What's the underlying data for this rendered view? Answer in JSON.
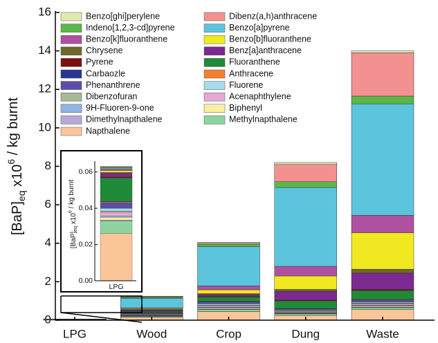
{
  "chart_data": [
    {
      "type": "stacked_bar",
      "ylabel": {
        "main": "[BaP]",
        "sub": "eq",
        "mid": " x10",
        "sup": "6",
        "end": " / kg burnt"
      },
      "categories": [
        "LPG",
        "Wood",
        "Crop",
        "Dung",
        "Waste"
      ],
      "ylim": [
        0,
        16
      ],
      "yticks": [
        0,
        2,
        4,
        6,
        8,
        10,
        12,
        14,
        16
      ],
      "series": [
        {
          "name": "Napthalene",
          "color": "#fbc59a",
          "values": [
            0.026,
            0.15,
            0.45,
            0.25,
            0.55
          ]
        },
        {
          "name": "Methylnapthalene",
          "color": "#8fd4a0",
          "values": [
            0.007,
            0.05,
            0.1,
            0.08,
            0.1
          ]
        },
        {
          "name": "Dimethylnapthalene",
          "color": "#b9a9d4",
          "values": [
            0.0005,
            0.01,
            0.02,
            0.02,
            0.03
          ]
        },
        {
          "name": "Biphenyl",
          "color": "#f8f0a0",
          "values": [
            0.0015,
            0.02,
            0.05,
            0.03,
            0.05
          ]
        },
        {
          "name": "9H-Fluoren-9-one",
          "color": "#8fb4e0",
          "values": [
            0.0008,
            0.02,
            0.05,
            0.03,
            0.04
          ]
        },
        {
          "name": "Acenaphthylene",
          "color": "#e6a8d4",
          "values": [
            0.002,
            0.03,
            0.08,
            0.06,
            0.08
          ]
        },
        {
          "name": "Dibenzofuran",
          "color": "#a8b898",
          "values": [
            0.0007,
            0.02,
            0.03,
            0.02,
            0.03
          ]
        },
        {
          "name": "Fluorene",
          "color": "#a8dcec",
          "values": [
            0.0015,
            0.03,
            0.07,
            0.05,
            0.06
          ]
        },
        {
          "name": "Phenanthrene",
          "color": "#5a4ea8",
          "values": [
            0.003,
            0.05,
            0.1,
            0.04,
            0.1
          ]
        },
        {
          "name": "Anthracene",
          "color": "#f08030",
          "values": [
            0.0005,
            0.01,
            0.02,
            0.01,
            0.03
          ]
        },
        {
          "name": "Carbaozle",
          "color": "#283890",
          "values": [
            0.0003,
            0.01,
            0.01,
            0.01,
            0.02
          ]
        },
        {
          "name": "Fluoranthene",
          "color": "#1f8a3a",
          "values": [
            0.013,
            0.06,
            0.22,
            0.4,
            0.45
          ]
        },
        {
          "name": "Pyrene",
          "color": "#7a1010",
          "values": [
            0.0005,
            0.02,
            0.03,
            0.05,
            0.06
          ]
        },
        {
          "name": "Benz[a]anthracene",
          "color": "#7a2a90",
          "values": [
            0.002,
            0.05,
            0.1,
            0.45,
            0.85
          ]
        },
        {
          "name": "Chrysene",
          "color": "#6e6a2a",
          "values": [
            0.0005,
            0.03,
            0.05,
            0.1,
            0.2
          ]
        },
        {
          "name": "Benzo[b]fluoranthene",
          "color": "#f0e820",
          "values": [
            0.001,
            0.05,
            0.2,
            0.7,
            1.9
          ]
        },
        {
          "name": "Benzo[k]fluoranthene",
          "color": "#b050a0",
          "values": [
            0.0008,
            0.03,
            0.2,
            0.5,
            0.9
          ]
        },
        {
          "name": "Benzo[a]pyrene",
          "color": "#5cc4dc",
          "values": [
            0.0006,
            0.5,
            2.05,
            4.1,
            5.8
          ]
        },
        {
          "name": "Indeno[1,2,3-cd]pyrene",
          "color": "#5ab848",
          "values": [
            0.0004,
            0.05,
            0.12,
            0.3,
            0.4
          ]
        },
        {
          "name": "Dibenz(a,h)anthracene",
          "color": "#f39090",
          "values": [
            0.0003,
            0.03,
            0.05,
            0.9,
            2.25
          ]
        },
        {
          "name": "Benzo[ghi]perylene",
          "color": "#e0eab0",
          "values": [
            0.0003,
            0.03,
            0.05,
            0.1,
            0.1
          ]
        }
      ]
    },
    {
      "type": "inset_bar",
      "ylabel": {
        "main": "[BaP]",
        "sub": "eq",
        "mid": " x10",
        "sup": "6",
        "end": " / kg burnt"
      },
      "categories": [
        "LPG"
      ],
      "ylim": [
        0,
        0.066
      ],
      "yticks": [
        {
          "value": 0,
          "label": "0.00"
        },
        {
          "value": 0.02,
          "label": "0.02"
        },
        {
          "value": 0.04,
          "label": "0.04"
        },
        {
          "value": 0.06,
          "label": "0.06"
        }
      ]
    }
  ]
}
